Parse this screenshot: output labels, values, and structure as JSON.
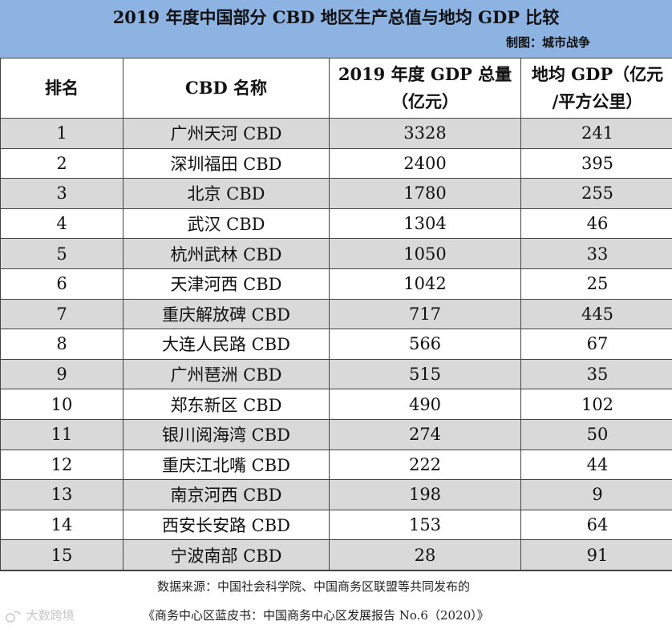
{
  "header": {
    "title": "2019 年度中国部分 CBD 地区生产总值与地均 GDP 比较",
    "maker": "制图：城市战争"
  },
  "table": {
    "columns": [
      "排名",
      "CBD 名称",
      "2019 年度 GDP 总量（亿元）",
      "地均 GDP（亿元/平方公里）"
    ],
    "rows": [
      [
        "1",
        "广州天河 CBD",
        "3328",
        "241"
      ],
      [
        "2",
        "深圳福田 CBD",
        "2400",
        "395"
      ],
      [
        "3",
        "北京 CBD",
        "1780",
        "255"
      ],
      [
        "4",
        "武汉 CBD",
        "1304",
        "46"
      ],
      [
        "5",
        "杭州武林 CBD",
        "1050",
        "33"
      ],
      [
        "6",
        "天津河西 CBD",
        "1042",
        "25"
      ],
      [
        "7",
        "重庆解放碑 CBD",
        "717",
        "445"
      ],
      [
        "8",
        "大连人民路 CBD",
        "566",
        "67"
      ],
      [
        "9",
        "广州琶洲 CBD",
        "515",
        "35"
      ],
      [
        "10",
        "郑东新区 CBD",
        "490",
        "102"
      ],
      [
        "11",
        "银川阅海湾 CBD",
        "274",
        "50"
      ],
      [
        "12",
        "重庆江北嘴 CBD",
        "222",
        "44"
      ],
      [
        "13",
        "南京河西 CBD",
        "198",
        "9"
      ],
      [
        "14",
        "西安长安路 CBD",
        "153",
        "64"
      ],
      [
        "15",
        "宁波南部 CBD",
        "28",
        "91"
      ]
    ]
  },
  "footer": {
    "source_line1": "数据来源：中国社会科学院、中国商务区联盟等共同发布的",
    "source_line2": "《商务中心区蓝皮书：中国商务中心区发展报告 No.6（2020）》",
    "watermark": "大数跨境"
  }
}
